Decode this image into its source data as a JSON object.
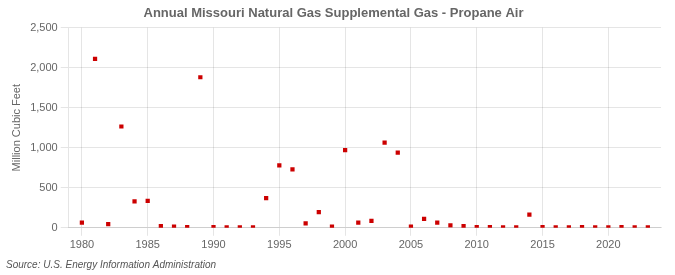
{
  "chart_data": {
    "type": "scatter",
    "title": "Annual Missouri Natural Gas Supplemental Gas - Propane Air",
    "ylabel": "Million Cubic Feet",
    "annotations": [
      "Source: U.S. Energy Information Administration"
    ],
    "color": "#cc0000",
    "marker": "square",
    "grid": true,
    "xlim": [
      1979,
      2024
    ],
    "xticks": [
      1980,
      1985,
      1990,
      1995,
      2000,
      2005,
      2010,
      2015,
      2020
    ],
    "ylim": [
      0,
      2500
    ],
    "yticks": [
      0,
      500,
      {
        "value": 1000,
        "label": "1,000"
      },
      {
        "value": 1500,
        "label": "1,500"
      },
      {
        "value": 2000,
        "label": "2,000"
      },
      {
        "value": 2500,
        "label": "2,500"
      }
    ],
    "x": [
      1980,
      1981,
      1982,
      1983,
      1984,
      1985,
      1986,
      1987,
      1988,
      1989,
      1990,
      1991,
      1992,
      1993,
      1994,
      1995,
      1996,
      1997,
      1998,
      1999,
      2000,
      2001,
      2002,
      2003,
      2004,
      2005,
      2006,
      2007,
      2008,
      2009,
      2010,
      2011,
      2012,
      2013,
      2014,
      2015,
      2016,
      2017,
      2018,
      2019,
      2020,
      2021,
      2022,
      2023
    ],
    "values": [
      65,
      2110,
      45,
      1265,
      330,
      335,
      20,
      15,
      10,
      1880,
      10,
      5,
      5,
      5,
      370,
      780,
      730,
      55,
      195,
      15,
      970,
      65,
      85,
      1065,
      940,
      15,
      110,
      65,
      30,
      20,
      10,
      10,
      5,
      5,
      165,
      10,
      5,
      5,
      10,
      5,
      5,
      10,
      5,
      5
    ]
  }
}
